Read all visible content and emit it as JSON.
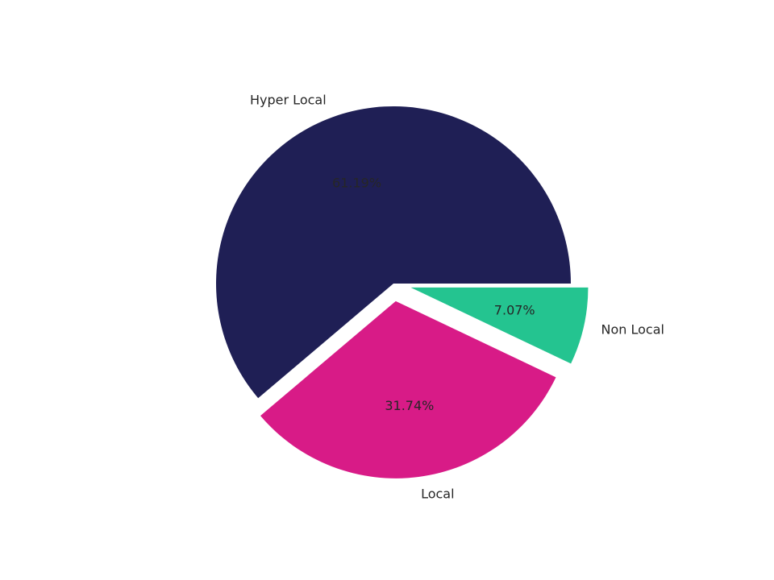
{
  "chart_data": {
    "type": "pie",
    "categories": [
      "Hyper Local",
      "Local",
      "Non Local"
    ],
    "values": [
      61.19,
      31.74,
      7.07
    ],
    "value_labels": [
      "61.19%",
      "31.74%",
      "7.07%"
    ],
    "colors": [
      "#1f1f55",
      "#d81b87",
      "#24c490"
    ],
    "explode": [
      0,
      0.1,
      0.1
    ]
  }
}
